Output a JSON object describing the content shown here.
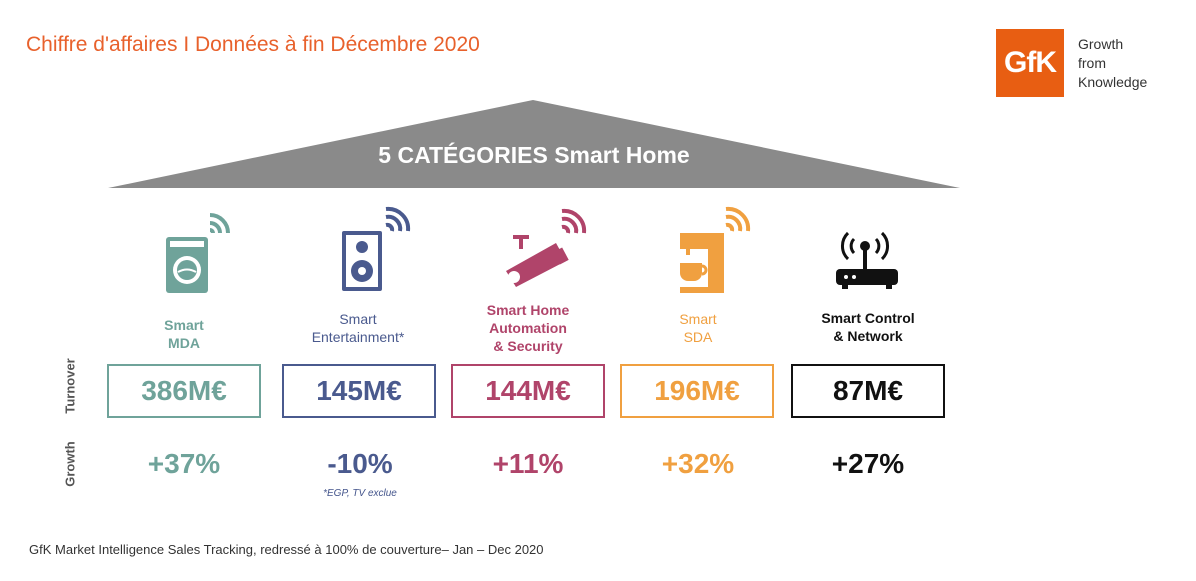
{
  "title": "Chiffre d'affaires I Données à fin Décembre 2020",
  "logo": {
    "mark": "GfK",
    "tagline": [
      "Growth",
      "from",
      "Knowledge"
    ],
    "color": "#e85e12"
  },
  "banner": {
    "text": "5 CATÉGORIES Smart Home",
    "color": "#8a8a8a"
  },
  "side_labels": {
    "turnover": "Turnover",
    "growth": "Growth"
  },
  "categories": [
    {
      "label": "Smart MDA",
      "lines": [
        "Smart",
        "MDA"
      ],
      "icon": "washing-machine-icon",
      "value": "386M€",
      "growth": "+37%",
      "color": "#6fa39a"
    },
    {
      "label": "Smart Entertainment*",
      "lines": [
        "Smart",
        "Entertainment*"
      ],
      "icon": "speaker-icon",
      "value": "145M€",
      "growth": "-10%",
      "color": "#4a5a8e"
    },
    {
      "label": "Smart Home Automation & Security",
      "lines": [
        "Smart Home",
        "Automation",
        "& Security"
      ],
      "icon": "security-camera-icon",
      "value": "144M€",
      "growth": "+11%",
      "color": "#b0446a"
    },
    {
      "label": "Smart SDA",
      "lines": [
        "Smart",
        "SDA"
      ],
      "icon": "coffee-machine-icon",
      "value": "196M€",
      "growth": "+32%",
      "color": "#f0a040"
    },
    {
      "label": "Smart Control & Network",
      "lines": [
        "Smart Control",
        "& Network"
      ],
      "icon": "router-icon",
      "value": "87M€",
      "growth": "+27%",
      "color": "#111111"
    }
  ],
  "footnote": "*EGP, TV exclue",
  "source": "GfK Market Intelligence Sales Tracking, redressé à 100% de couverture– Jan – Dec 2020"
}
